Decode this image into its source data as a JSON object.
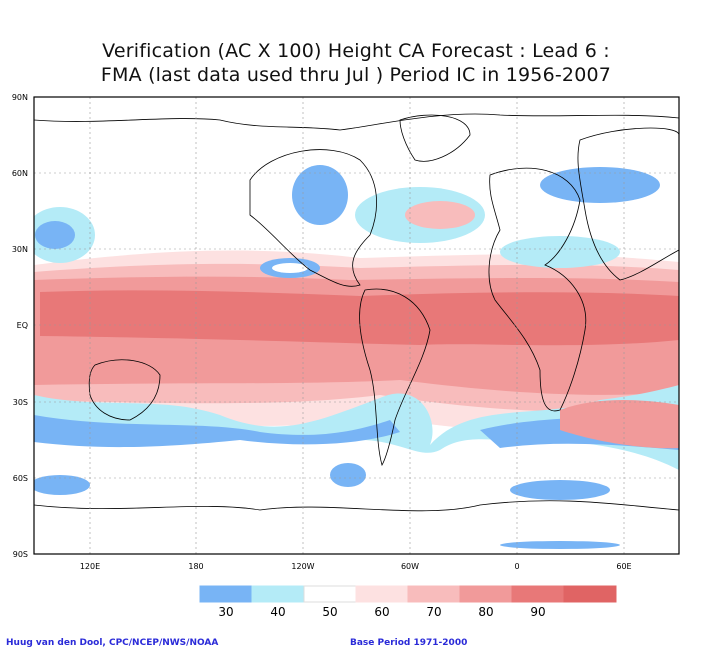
{
  "title": {
    "line1": "Verification (AC X 100) Height CA Forecast : Lead 6 :",
    "line2": "FMA (last data used thru Jul ) Period IC in 1956-2007"
  },
  "lat_labels": [
    "90N",
    "60N",
    "30N",
    "EQ",
    "30S",
    "60S",
    "90S"
  ],
  "lon_labels": [
    "120E",
    "180",
    "120W",
    "60W",
    "0",
    "60E"
  ],
  "legend": {
    "labels": [
      "30",
      "40",
      "50",
      "60",
      "70",
      "80",
      "90"
    ],
    "colors": [
      "#78b4f5",
      "#b4ebf7",
      "#ffffff",
      "#fde1e1",
      "#f8bcbc",
      "#f19a9a",
      "#e87878",
      "#e06464"
    ]
  },
  "footer": {
    "credit": "Huug van den Dool, CPC/NCEP/NWS/NOAA",
    "base_period": "Base Period 1971-2000"
  }
}
